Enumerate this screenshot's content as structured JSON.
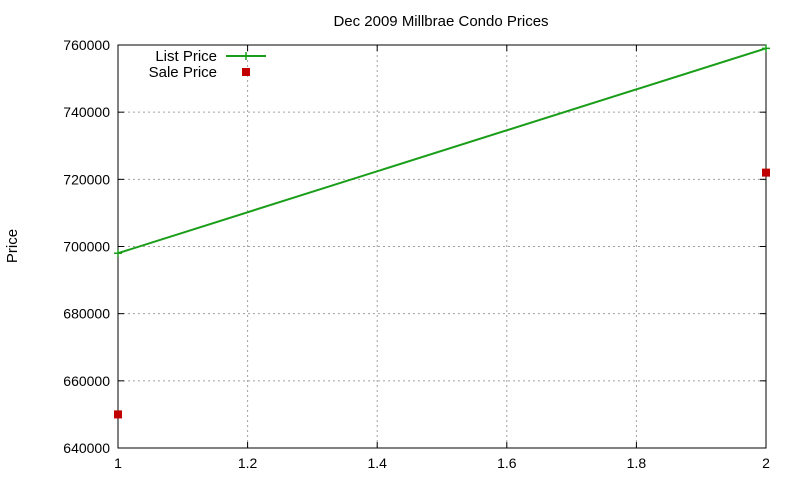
{
  "chart_data": {
    "type": "line",
    "title": "Dec 2009 Millbrae Condo Prices",
    "xlabel": "",
    "ylabel": "Price",
    "xlim": [
      1,
      2
    ],
    "ylim": [
      640000,
      760000
    ],
    "xticks": [
      "1",
      "1.2",
      "1.4",
      "1.6",
      "1.8",
      "2"
    ],
    "xtick_values": [
      1,
      1.2,
      1.4,
      1.6,
      1.8,
      2
    ],
    "yticks": [
      "640000",
      "660000",
      "680000",
      "700000",
      "720000",
      "740000",
      "760000"
    ],
    "ytick_values": [
      640000,
      660000,
      680000,
      700000,
      720000,
      740000,
      760000
    ],
    "grid": true,
    "legend_position": "top-left",
    "series": [
      {
        "name": "List Price",
        "style": "linespoints",
        "color": "#1a9e1a",
        "marker": "plus",
        "points": [
          [
            1,
            698000
          ],
          [
            2,
            759000
          ]
        ]
      },
      {
        "name": "Sale Price",
        "style": "points",
        "color": "#c00000",
        "marker": "square",
        "points": [
          [
            1,
            650000
          ],
          [
            2,
            722000
          ]
        ]
      }
    ]
  }
}
